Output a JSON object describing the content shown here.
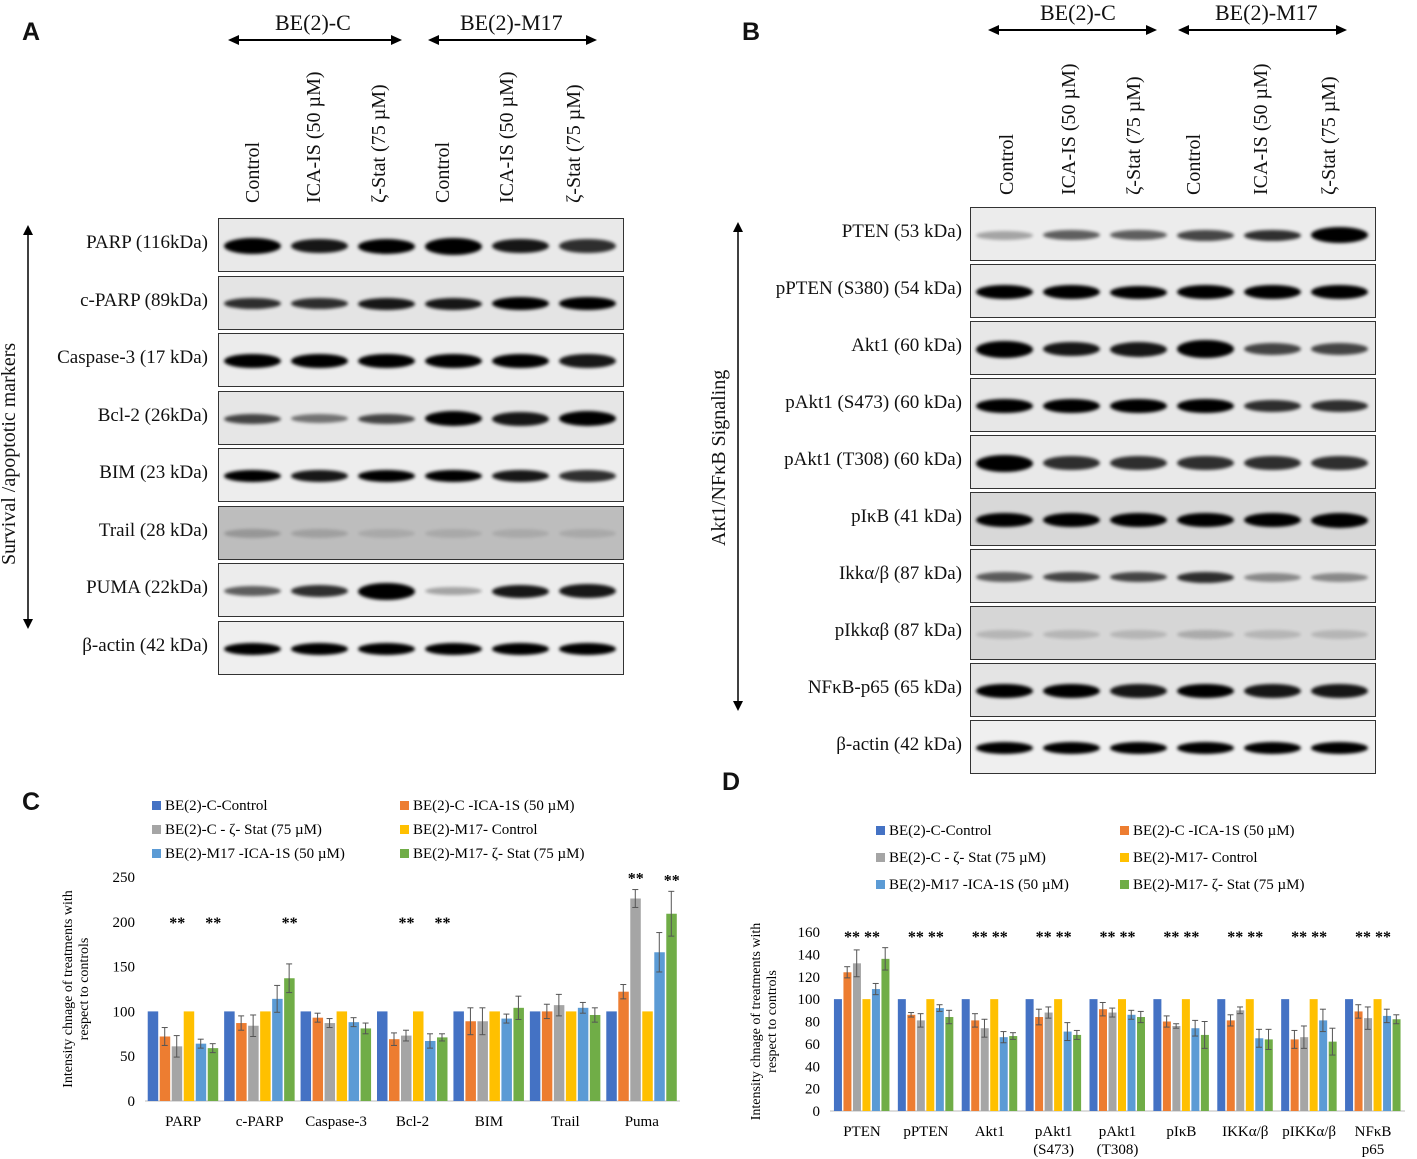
{
  "panels": {
    "A": {
      "label": "A",
      "groups": [
        "BE(2)-C",
        "BE(2)-M17"
      ],
      "lanes": [
        "Control",
        "ICA-IS  (50 µM)",
        "ζ-Stat   (75 µM)",
        "Control",
        "ICA-IS  (50 µM)",
        "ζ-Stat   (75 µM)"
      ],
      "side_label": "Survival /apoptotic  markers",
      "rows": [
        "PARP (116kDa)",
        "c-PARP (89kDa)",
        "Caspase-3 (17 kDa)",
        "Bcl-2 (26kDa)",
        "BIM (23 kDa)",
        "Trail (28 kDa)",
        "PUMA (22kDa)",
        "β-actin (42 kDa)"
      ]
    },
    "B": {
      "label": "B",
      "groups": [
        "BE(2)-C",
        "BE(2)-M17"
      ],
      "lanes": [
        "Control",
        "ICA-IS  (50 µM)",
        "ζ-Stat   (75 µM)",
        "Control",
        "ICA-IS  (50 µM)",
        "ζ-Stat   (75 µM)"
      ],
      "side_label": "Akt1/NFκB Signaling",
      "rows": [
        "PTEN (53 kDa)",
        "pPTEN (S380) (54 kDa)",
        "Akt1 (60 kDa)",
        "pAkt1 (S473) (60 kDa)",
        "pAkt1 (T308) (60 kDa)",
        "pIκB (41 kDa)",
        "Ikkα/β (87 kDa)",
        "pIkkαβ (87 kDa)",
        "NFκB-p65 (65 kDa)",
        "β-actin (42 kDa)"
      ]
    },
    "C": {
      "label": "C"
    },
    "D": {
      "label": "D"
    }
  },
  "chart_data": [
    {
      "type": "bar",
      "panel": "C",
      "ylabel": "Intensity chnage  of treatments with respect to controls",
      "ylim": [
        0,
        250
      ],
      "yticks": [
        "0",
        "50",
        "100",
        "150",
        "200",
        "250"
      ],
      "categories": [
        "PARP",
        "c-PARP",
        "Caspase-3",
        "Bcl-2",
        "BIM",
        "Trail",
        "Puma"
      ],
      "series": [
        {
          "name": "BE(2)-C-Control",
          "color": "#4472C4",
          "values": [
            100,
            100,
            100,
            100,
            100,
            100,
            100
          ],
          "errors": [
            0,
            0,
            0,
            0,
            0,
            0,
            0
          ]
        },
        {
          "name": "BE(2)-C -ICA-1S (50 µM)",
          "color": "#ED7D31",
          "values": [
            72,
            87,
            93,
            69,
            89,
            100,
            122
          ],
          "errors": [
            10,
            8,
            5,
            7,
            15,
            8,
            8
          ]
        },
        {
          "name": "BE(2)-C - ζ- Stat (75 µM)",
          "color": "#A5A5A5",
          "values": [
            61,
            84,
            87,
            73,
            89,
            107,
            226
          ],
          "errors": [
            12,
            12,
            5,
            6,
            15,
            12,
            10
          ]
        },
        {
          "name": "BE(2)-M17- Control",
          "color": "#FFC000",
          "values": [
            100,
            100,
            100,
            100,
            100,
            100,
            100
          ],
          "errors": [
            0,
            0,
            0,
            0,
            0,
            0,
            0
          ]
        },
        {
          "name": "BE(2)-M17 -ICA-1S (50 µM)",
          "color": "#5B9BD5",
          "values": [
            64,
            114,
            88,
            67,
            92,
            104,
            166
          ],
          "errors": [
            5,
            15,
            5,
            8,
            5,
            6,
            22
          ]
        },
        {
          "name": "BE(2)-M17- ζ- Stat (75 µM)",
          "color": "#70AD47",
          "values": [
            59,
            137,
            81,
            71,
            104,
            96,
            209
          ],
          "errors": [
            5,
            16,
            6,
            4,
            13,
            8,
            25
          ]
        }
      ],
      "annotations": [
        {
          "category": "PARP",
          "series": [
            2,
            5
          ],
          "text": "**"
        },
        {
          "category": "c-PARP",
          "series": [
            5
          ],
          "text": "**"
        },
        {
          "category": "Bcl-2",
          "series": [
            2,
            5
          ],
          "text": "**"
        },
        {
          "category": "Puma",
          "series": [
            2,
            5
          ],
          "text": "**"
        }
      ]
    },
    {
      "type": "bar",
      "panel": "D",
      "ylabel": "Intensity chnage  of treatments with respect to controls",
      "ylim": [
        0,
        160
      ],
      "yticks": [
        "0",
        "20",
        "40",
        "60",
        "80",
        "100",
        "120",
        "140",
        "160"
      ],
      "categories": [
        "PTEN",
        "pPTEN",
        "Akt1",
        "pAkt1\n(S473)",
        "pAkt1\n(T308)",
        "pIκB",
        "IKKα/β",
        "pIKKα/β",
        "NFκB\np65"
      ],
      "series": [
        {
          "name": "BE(2)-C-Control",
          "color": "#4472C4",
          "values": [
            100,
            100,
            100,
            100,
            100,
            100,
            100,
            100,
            100
          ],
          "errors": [
            0,
            0,
            0,
            0,
            0,
            0,
            0,
            0,
            0
          ]
        },
        {
          "name": "BE(2)-C -ICA-1S (50 µM)",
          "color": "#ED7D31",
          "values": [
            124,
            86,
            81,
            84,
            91,
            80,
            81,
            64,
            89
          ]
        },
        {
          "name": "BE(2)-C - ζ- Stat (75 µM)",
          "color": "#A5A5A5",
          "values": [
            132,
            81,
            74,
            88,
            88,
            76,
            90,
            66,
            83
          ]
        },
        {
          "name": "BE(2)-M17- Control",
          "color": "#FFC000",
          "values": [
            100,
            100,
            100,
            100,
            100,
            100,
            100,
            100,
            100
          ]
        },
        {
          "name": "BE(2)-M17 -ICA-1S (50 µM)",
          "color": "#5B9BD5",
          "values": [
            109,
            92,
            66,
            71,
            86,
            74,
            65,
            81,
            85
          ]
        },
        {
          "name": "BE(2)-M17- ζ- Stat (75 µM)",
          "color": "#70AD47",
          "values": [
            136,
            84,
            67,
            68,
            84,
            68,
            64,
            62,
            82
          ]
        }
      ],
      "errors": [
        [
          0,
          0,
          0,
          0,
          0,
          0,
          0,
          0,
          0
        ],
        [
          5,
          2,
          6,
          7,
          6,
          5,
          5,
          8,
          6
        ],
        [
          12,
          6,
          8,
          5,
          4,
          2,
          3,
          10,
          10
        ],
        [
          0,
          0,
          0,
          0,
          0,
          0,
          0,
          0,
          0
        ],
        [
          5,
          3,
          5,
          8,
          4,
          7,
          8,
          10,
          6
        ],
        [
          10,
          6,
          3,
          4,
          5,
          12,
          9,
          12,
          4
        ]
      ],
      "annotations": [
        {
          "category_index": 0,
          "text": "**  **"
        },
        {
          "category_index": 1,
          "text": "**  **"
        },
        {
          "category_index": 2,
          "text": "**  **"
        },
        {
          "category_index": 3,
          "text": "**  **"
        },
        {
          "category_index": 4,
          "text": "**  **"
        },
        {
          "category_index": 5,
          "text": "**  **"
        },
        {
          "category_index": 6,
          "text": "**  **"
        },
        {
          "category_index": 7,
          "text": "**  **"
        },
        {
          "category_index": 8,
          "text": "**  **"
        }
      ]
    }
  ]
}
